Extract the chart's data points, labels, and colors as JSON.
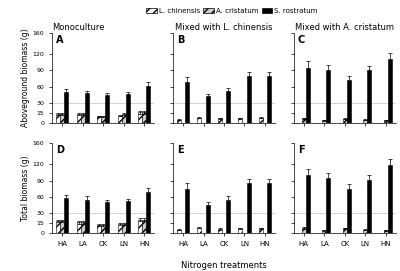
{
  "panels": {
    "A": {
      "label": "A",
      "row": 0,
      "col": 0,
      "L_chinensis": [
        13,
        13,
        10,
        11,
        16
      ],
      "A_cristatum": [
        14,
        13,
        10,
        13,
        16
      ],
      "S_rostratum": [
        50,
        48,
        44,
        46,
        62
      ],
      "L_err": [
        1.5,
        1.5,
        1.0,
        1.2,
        2.0
      ],
      "A_err": [
        1.5,
        1.5,
        1.0,
        1.5,
        2.0
      ],
      "S_err": [
        5,
        5,
        4,
        4,
        6
      ]
    },
    "B": {
      "label": "B",
      "row": 0,
      "col": 1,
      "L_chinensis": [
        5,
        8,
        7,
        7,
        8
      ],
      "A_cristatum": [
        0,
        0,
        0,
        0,
        0
      ],
      "S_rostratum": [
        68,
        42,
        52,
        80,
        80
      ],
      "L_err": [
        1.0,
        1.0,
        1.0,
        1.0,
        1.0
      ],
      "A_err": [
        0,
        0,
        0,
        0,
        0
      ],
      "S_err": [
        10,
        5,
        6,
        8,
        8
      ]
    },
    "C": {
      "label": "C",
      "row": 0,
      "col": 2,
      "L_chinensis": [
        0,
        0,
        0,
        0,
        0
      ],
      "A_cristatum": [
        7,
        4,
        6,
        5,
        4
      ],
      "S_rostratum": [
        95,
        90,
        72,
        90,
        112
      ],
      "L_err": [
        0,
        0,
        0,
        0,
        0
      ],
      "A_err": [
        1.0,
        0.5,
        0.8,
        0.8,
        0.5
      ],
      "S_err": [
        12,
        10,
        8,
        8,
        10
      ]
    },
    "D": {
      "label": "D",
      "row": 1,
      "col": 0,
      "L_chinensis": [
        18,
        16,
        12,
        14,
        20
      ],
      "A_cristatum": [
        18,
        16,
        12,
        14,
        20
      ],
      "S_rostratum": [
        58,
        55,
        50,
        52,
        70
      ],
      "L_err": [
        2,
        2,
        1.5,
        1.5,
        2.5
      ],
      "A_err": [
        2,
        2,
        1.5,
        1.5,
        2.5
      ],
      "S_err": [
        6,
        6,
        5,
        5,
        7
      ]
    },
    "E": {
      "label": "E",
      "row": 1,
      "col": 1,
      "L_chinensis": [
        5,
        8,
        6,
        7,
        7
      ],
      "A_cristatum": [
        0,
        0,
        0,
        0,
        0
      ],
      "S_rostratum": [
        75,
        46,
        55,
        85,
        85
      ],
      "L_err": [
        1,
        1,
        1,
        1,
        1
      ],
      "A_err": [
        0,
        0,
        0,
        0,
        0
      ],
      "S_err": [
        10,
        5,
        6,
        8,
        8
      ]
    },
    "F": {
      "label": "F",
      "row": 1,
      "col": 2,
      "L_chinensis": [
        0,
        0,
        0,
        0,
        0
      ],
      "A_cristatum": [
        8,
        4,
        7,
        5,
        4
      ],
      "S_rostratum": [
        100,
        95,
        75,
        92,
        118
      ],
      "L_err": [
        0,
        0,
        0,
        0,
        0
      ],
      "A_err": [
        1.2,
        0.5,
        1.0,
        0.8,
        0.5
      ],
      "S_err": [
        12,
        10,
        8,
        8,
        12
      ]
    }
  },
  "col_titles": [
    "Monoculture",
    "Mixed with L. chinensis",
    "Mixed with A. cristatum"
  ],
  "row_ylabels": [
    "Aboveground biomass (g)",
    "Total biomass (g)"
  ],
  "xlabel": "Nitrogen treatments",
  "categories": [
    "HA",
    "LA",
    "CK",
    "LN",
    "HN"
  ],
  "bar_colors": [
    "white",
    "#cccccc",
    "black"
  ],
  "bar_hatches": [
    "////",
    "////",
    ""
  ],
  "yticks_real": [
    0,
    15,
    30,
    60,
    90,
    120,
    160
  ],
  "ybreak_lower": 30,
  "ybreak_upper": 60,
  "ylim_display": [
    0,
    160
  ]
}
